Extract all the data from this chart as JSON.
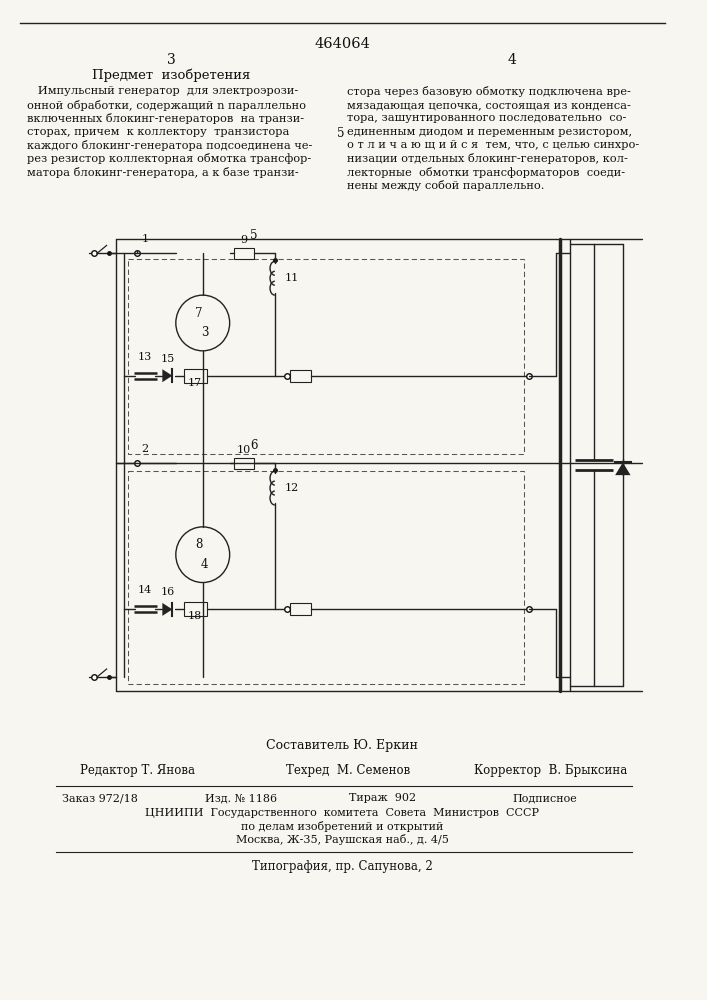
{
  "patent_number": "464064",
  "page_left": "3",
  "page_right": "4",
  "section_title": "Предмет  изобретения",
  "text_left_lines": [
    "   Импульсный генератор  для электроэрози-",
    "онной обработки, содержащий n параллельно",
    "включенных блокинг-генераторов  на транзи-",
    "сторах, причем  к коллектору  транзистора",
    "каждого блокинг-генератора подсоединена че-",
    "рез резистор коллекторная обмотка трансфор-",
    "матора блокинг-генератора, а к базе транзи-"
  ],
  "line_number_5": "5",
  "text_right_lines": [
    "стора через базовую обмотку подключена вре-",
    "мязадающая цепочка, состоящая из конденса-",
    "тора, зашунтированного последовательно  со-",
    "единенным диодом и переменным резистором,",
    "о т л и ч а ю щ и й с я  тем, что, с целью синхро-",
    "низации отдельных блокинг-генераторов, кол-",
    "лекторные  обмотки трансформаторов  соеди-",
    "нены между собой параллельно."
  ],
  "composer": "Составитель Ю. Еркин",
  "editor": "Редактор Т. Янова",
  "techred": "Техред  М. Семенов",
  "corrector": "Корректор  В. Брыксина",
  "order": "Заказ 972/18",
  "izd": "Изд. № 1186",
  "tirazh": "Тираж  902",
  "podpisnoe": "Подписное",
  "org_line1": "ЦНИИПИ  Государственного  комитета  Совета  Министров  СССР",
  "org_line2": "по делам изобретений и открытий",
  "org_line3": "Москва, Ж-35, Раушская наб., д. 4/5",
  "typografia": "Типография, пр. Сапунова, 2",
  "bg_color": "#f8f6f0",
  "text_color": "#111111",
  "line_color": "#222222"
}
